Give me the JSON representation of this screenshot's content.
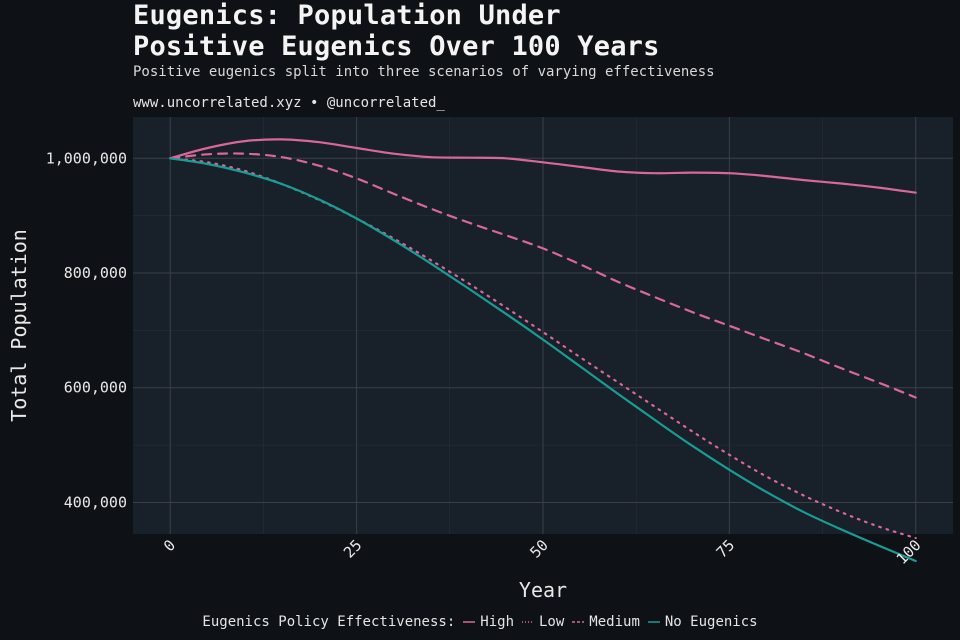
{
  "chart_data": {
    "type": "line",
    "title_line_1": "Eugenics: Population Under",
    "title_line_2": "Positive Eugenics Over 100 Years",
    "subtitle": "Positive eugenics split into three scenarios of varying effectiveness",
    "caption": "www.uncorrelated.xyz • @uncorrelated_",
    "xlabel": "Year",
    "ylabel": "Total Population",
    "xlim": [
      -5,
      105
    ],
    "ylim": [
      345000,
      1072000
    ],
    "x_ticks": [
      0,
      25,
      50,
      75,
      100
    ],
    "x_tick_labels": [
      "0",
      "25",
      "50",
      "75",
      "100"
    ],
    "y_ticks": [
      400000,
      600000,
      800000,
      1000000
    ],
    "y_tick_labels": [
      "400,000",
      "600,000",
      "800,000",
      "1,000,000"
    ],
    "grid": true,
    "legend_title": "Eugenics Policy Effectiveness:",
    "legend_position": "bottom",
    "x": [
      0,
      5,
      10,
      15,
      20,
      25,
      30,
      35,
      40,
      45,
      50,
      55,
      60,
      65,
      70,
      75,
      80,
      85,
      90,
      95,
      100
    ],
    "series": [
      {
        "name": "High",
        "color": "#d9679a",
        "dash": "solid",
        "values": [
          1000000,
          1018000,
          1030000,
          1033000,
          1028000,
          1018000,
          1008000,
          1002000,
          1001000,
          1000000,
          993000,
          985000,
          977000,
          974000,
          975000,
          974000,
          969000,
          962000,
          956000,
          949000,
          940000
        ]
      },
      {
        "name": "Low",
        "color": "#d9679a",
        "dash": "dotted",
        "values": [
          1000000,
          993000,
          978000,
          955000,
          927000,
          895000,
          860000,
          822000,
          782000,
          740000,
          697000,
          653000,
          610000,
          567000,
          524000,
          483000,
          445000,
          412000,
          383000,
          358000,
          338000
        ]
      },
      {
        "name": "Medium",
        "color": "#d9679a",
        "dash": "dashed",
        "values": [
          1000000,
          1007000,
          1008000,
          1002000,
          987000,
          965000,
          938000,
          912000,
          888000,
          866000,
          843000,
          815000,
          785000,
          758000,
          732000,
          708000,
          684000,
          660000,
          634000,
          609000,
          583000
        ]
      },
      {
        "name": "No Eugenics",
        "color": "#1a9c96",
        "dash": "solid",
        "values": [
          1000000,
          990000,
          975000,
          955000,
          928000,
          895000,
          857000,
          816000,
          773000,
          729000,
          684000,
          637000,
          590000,
          544000,
          499000,
          457000,
          418000,
          383000,
          353000,
          325000,
          298000
        ]
      }
    ]
  },
  "colors": {
    "background": "#0e1217",
    "panel": "#182029",
    "grid": "#3a4048"
  }
}
